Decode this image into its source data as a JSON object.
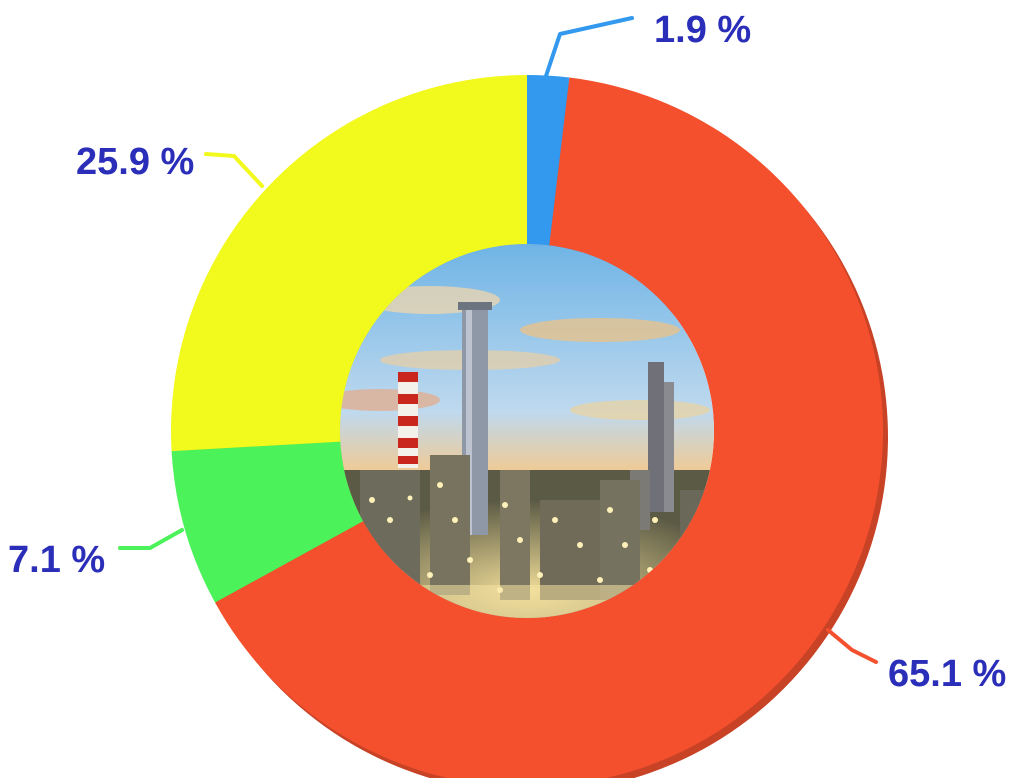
{
  "chart_data": {
    "type": "pie",
    "donut": true,
    "slices": [
      {
        "value": 1.9,
        "label": "1.9 %",
        "color": "#3399EE"
      },
      {
        "value": 65.1,
        "label": "65.1 %",
        "color": "#F4502E"
      },
      {
        "value": 7.1,
        "label": "7.1 %",
        "color": "#4CF25A"
      },
      {
        "value": 25.9,
        "label": "25.9 %",
        "color": "#F2F91C"
      }
    ],
    "label_color": "#2A2EB8",
    "center_image": "oil refinery at sunset",
    "start_angle": "top",
    "direction": "clockwise"
  }
}
